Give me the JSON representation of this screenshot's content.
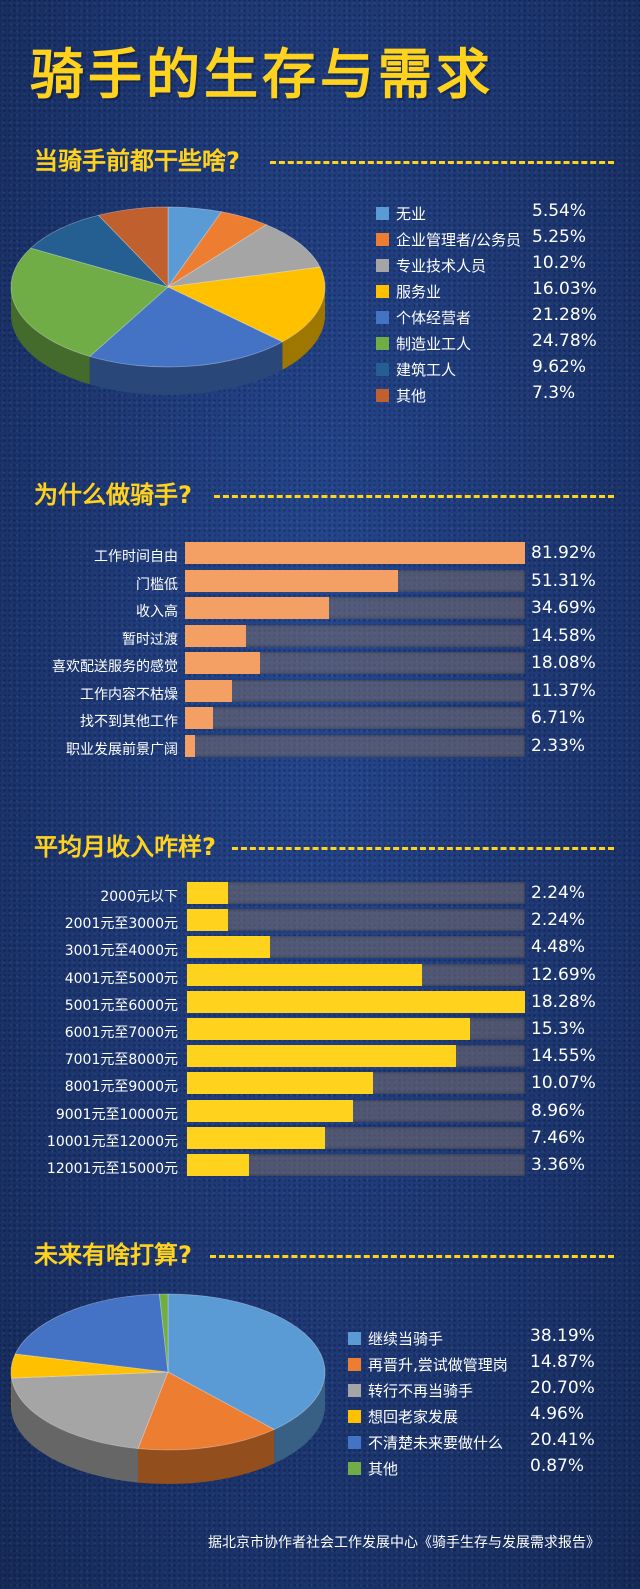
{
  "title": "骑手的生存与需求",
  "source": "据北京市协作者社会工作发展中心《骑手生存与发展需求报告》",
  "chart_data": [
    {
      "type": "pie",
      "title": "当骑手前都干些啥?",
      "labels": [
        "无业",
        "企业管理者/公务员",
        "专业技术人员",
        "服务业",
        "个体经营者",
        "制造业工人",
        "建筑工人",
        "其他"
      ],
      "values": [
        5.54,
        5.25,
        10.2,
        16.03,
        21.28,
        24.78,
        9.62,
        7.3
      ],
      "value_labels": [
        "5.54%",
        "5.25%",
        "10.2%",
        "16.03%",
        "21.28%",
        "24.78%",
        "9.62%",
        "7.3%"
      ],
      "colors": [
        "#5b9bd5",
        "#ed7d31",
        "#a5a5a5",
        "#ffc000",
        "#4472c4",
        "#70ad47",
        "#255e91",
        "#c0602e"
      ],
      "legend": "right"
    },
    {
      "type": "bar",
      "orientation": "horizontal",
      "title": "为什么做骑手?",
      "categories": [
        "工作时间自由",
        "门槛低",
        "收入高",
        "暂时过渡",
        "喜欢配送服务的感觉",
        "工作内容不枯燥",
        "找不到其他工作",
        "职业发展前景广阔"
      ],
      "values": [
        81.92,
        51.31,
        34.69,
        14.58,
        18.08,
        11.37,
        6.71,
        2.33
      ],
      "value_labels": [
        "81.92%",
        "51.31%",
        "34.69%",
        "14.58%",
        "18.08%",
        "11.37%",
        "6.71%",
        "2.33%"
      ],
      "xlim": [
        0,
        81.92
      ],
      "bar_color": "#f4a064"
    },
    {
      "type": "bar",
      "orientation": "horizontal",
      "title": "平均月收入咋样?",
      "categories": [
        "2000元以下",
        "2001元至3000元",
        "3001元至4000元",
        "4001元至5000元",
        "5001元至6000元",
        "6001元至7000元",
        "7001元至8000元",
        "8001元至9000元",
        "9001元至10000元",
        "10001元至12000元",
        "12001元至15000元"
      ],
      "values": [
        2.24,
        2.24,
        4.48,
        12.69,
        18.28,
        15.3,
        14.55,
        10.07,
        8.96,
        7.46,
        3.36
      ],
      "value_labels": [
        "2.24%",
        "2.24%",
        "4.48%",
        "12.69%",
        "18.28%",
        "15.3%",
        "14.55%",
        "10.07%",
        "8.96%",
        "7.46%",
        "3.36%"
      ],
      "xlim": [
        0,
        18.28
      ],
      "bar_color": "#ffd21e"
    },
    {
      "type": "pie",
      "title": "未来有啥打算?",
      "labels": [
        "继续当骑手",
        "再晋升,尝试做管理岗",
        "转行不再当骑手",
        "想回老家发展",
        "不清楚未来要做什么",
        "其他"
      ],
      "values": [
        38.19,
        14.87,
        20.7,
        4.96,
        20.41,
        0.87
      ],
      "value_labels": [
        "38.19%",
        "14.87%",
        "20.70%",
        "4.96%",
        "20.41%",
        "0.87%"
      ],
      "colors": [
        "#5b9bd5",
        "#ed7d31",
        "#a5a5a5",
        "#ffc000",
        "#4472c4",
        "#70ad47"
      ],
      "legend": "right"
    }
  ]
}
